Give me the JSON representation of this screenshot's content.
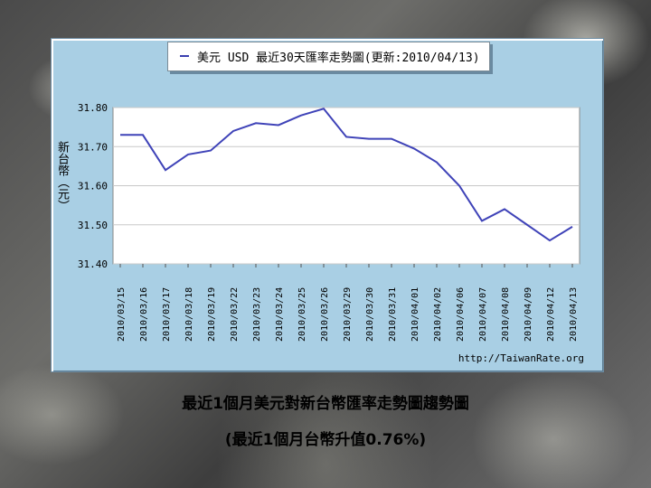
{
  "legend": {
    "label": "美元 USD 最近30天匯率走勢圖(更新:2010/04/13)"
  },
  "y_axis_label": "新台幣（元）",
  "source_url": "http://TaiwanRate.org",
  "caption": {
    "line1": "最近1個月美元對新台幣匯率走勢圖趨勢圖",
    "line2": "(最近1個月台幣升值0.76%)"
  },
  "colors": {
    "line": "#3f43b8",
    "plot_bg": "#ffffff",
    "panel_bg": "#a9cfe4",
    "grid": "#c8c8c8"
  },
  "chart_data": {
    "type": "line",
    "title": "美元 USD 最近30天匯率走勢圖(更新:2010/04/13)",
    "xlabel": "",
    "ylabel": "新台幣（元）",
    "ylim": [
      31.4,
      31.8
    ],
    "yticks": [
      "31.80",
      "31.70",
      "31.60",
      "31.50",
      "31.40"
    ],
    "grid": true,
    "legend_position": "top",
    "categories": [
      "2010/03/15",
      "2010/03/16",
      "2010/03/17",
      "2010/03/18",
      "2010/03/19",
      "2010/03/22",
      "2010/03/23",
      "2010/03/24",
      "2010/03/25",
      "2010/03/26",
      "2010/03/29",
      "2010/03/30",
      "2010/03/31",
      "2010/04/01",
      "2010/04/02",
      "2010/04/06",
      "2010/04/07",
      "2010/04/08",
      "2010/04/09",
      "2010/04/12",
      "2010/04/13"
    ],
    "series": [
      {
        "name": "美元 USD",
        "values": [
          31.73,
          31.73,
          31.64,
          31.68,
          31.69,
          31.74,
          31.76,
          31.755,
          31.78,
          31.797,
          31.725,
          31.72,
          31.72,
          31.695,
          31.66,
          31.6,
          31.51,
          31.54,
          31.5,
          31.46,
          31.495
        ]
      }
    ]
  }
}
